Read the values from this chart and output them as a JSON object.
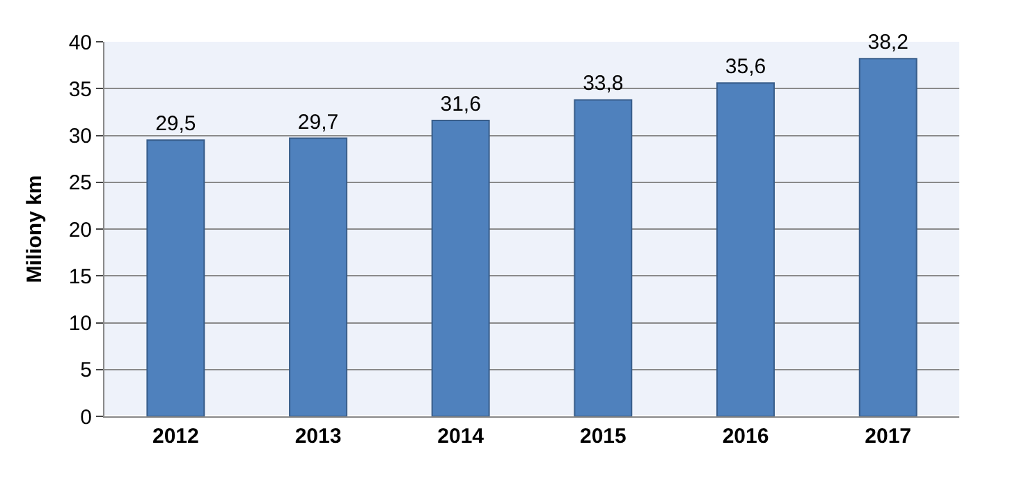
{
  "chart_data": {
    "type": "bar",
    "ylabel": "Miliony km",
    "categories": [
      "2012",
      "2013",
      "2014",
      "2015",
      "2016",
      "2017"
    ],
    "values": [
      29.5,
      29.7,
      31.6,
      33.8,
      35.6,
      38.2
    ],
    "value_labels": [
      "29,5",
      "29,7",
      "31,6",
      "33,8",
      "35,6",
      "38,2"
    ],
    "color": "#4f81bd",
    "ylim": [
      0,
      40
    ],
    "yticks": [
      0,
      5,
      10,
      15,
      20,
      25,
      30,
      35,
      40
    ],
    "grid": "y",
    "legend": false
  }
}
